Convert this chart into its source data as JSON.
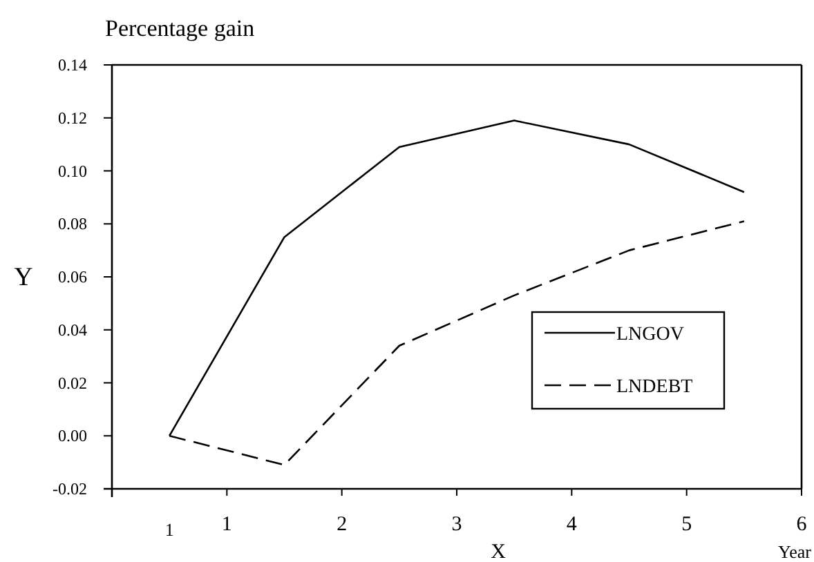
{
  "chart_data": {
    "type": "line",
    "title": "Percentage gain",
    "xlabel": "X",
    "ylabel": "Y",
    "annotations": [
      "Year"
    ],
    "x": [
      0.5,
      1.5,
      2.5,
      3.5,
      4.5,
      5.5
    ],
    "series": [
      {
        "name": "LNGOV",
        "color": "#000000",
        "line_style": "solid",
        "values": [
          0,
          0.075,
          0.109,
          0.119,
          0.11,
          0.092
        ]
      },
      {
        "name": "LNDEBT",
        "color": "#000000",
        "line_style": "dashed",
        "values": [
          0,
          -0.011,
          0.034,
          0.053,
          0.07,
          0.081
        ]
      }
    ],
    "xlim": [
      0,
      6
    ],
    "xticks": [
      {
        "value": 0.5,
        "label": "1"
      },
      1,
      2,
      3,
      4,
      5,
      6
    ],
    "ylim": [
      -0.02,
      0.14
    ],
    "yticks": [
      {
        "value": -0.02,
        "label": "-0.02"
      },
      {
        "value": 0,
        "label": "0.00"
      },
      {
        "value": 0.02,
        "label": "0.02"
      },
      {
        "value": 0.04,
        "label": "0.04"
      },
      {
        "value": 0.06,
        "label": "0.06"
      },
      {
        "value": 0.08,
        "label": "0.08"
      },
      {
        "value": 0.1,
        "label": "0.10"
      },
      {
        "value": 0.12,
        "label": "0.12"
      },
      {
        "value": 0.14,
        "label": "0.14"
      }
    ],
    "grid": false,
    "legend": "bottom right"
  }
}
